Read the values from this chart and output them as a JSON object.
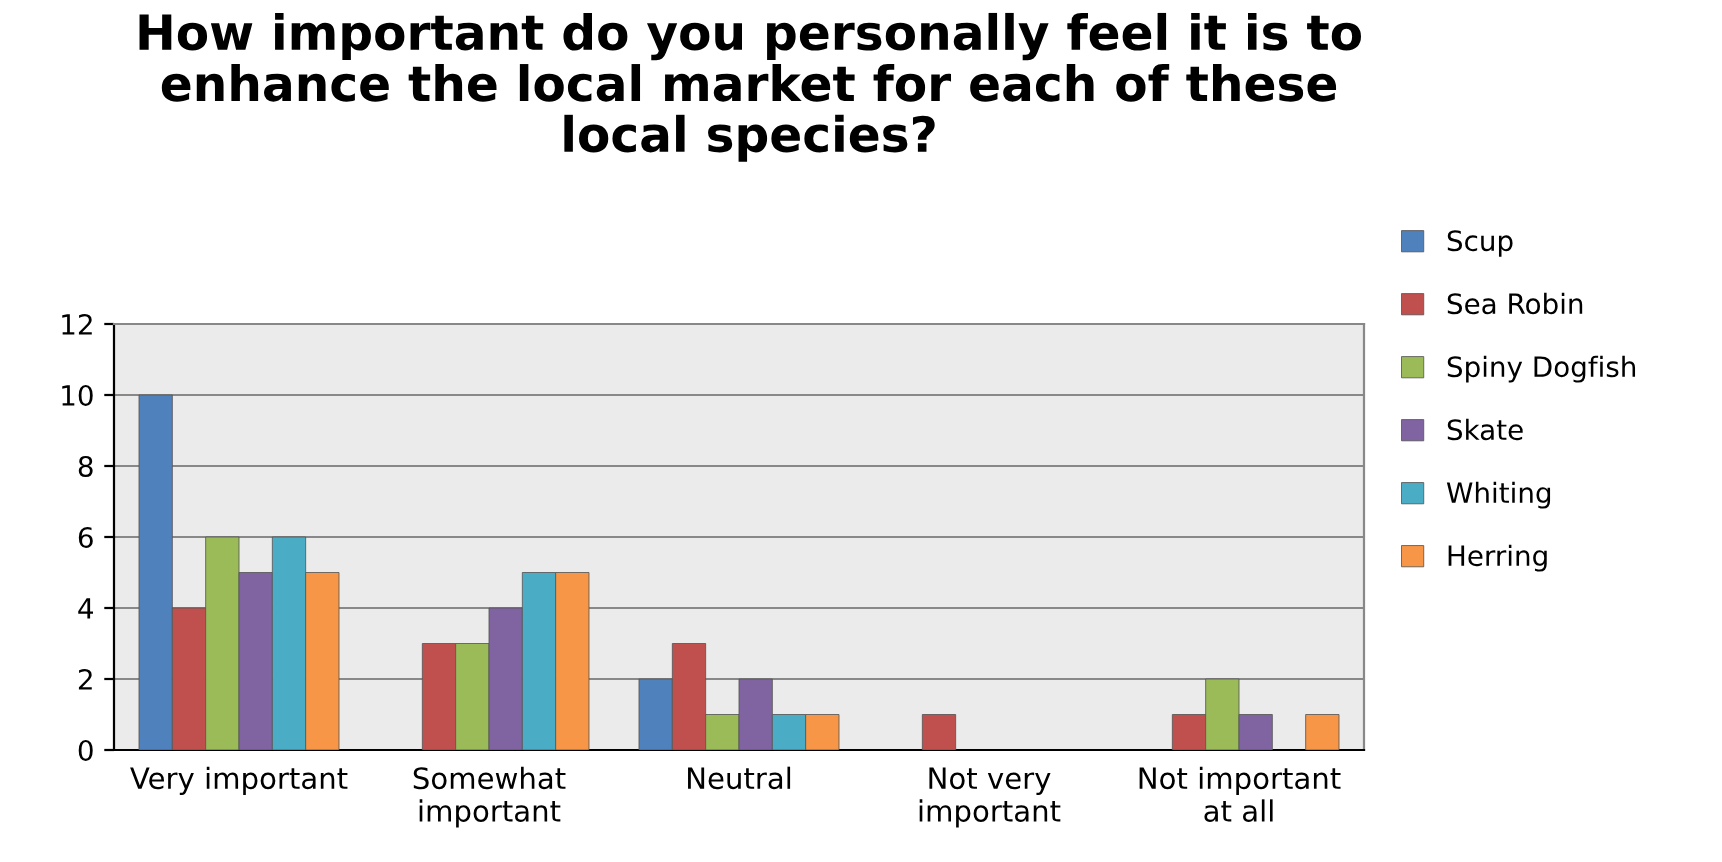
{
  "chart_data": {
    "type": "bar",
    "title": "How important do you personally feel it is to\nenhance the local market for each of these\nlocal species?",
    "categories": [
      "Very important",
      "Somewhat\nimportant",
      "Neutral",
      "Not very\nimportant",
      "Not important\nat all"
    ],
    "series": [
      {
        "name": "Scup",
        "color": "#4f81bd",
        "values": [
          10,
          null,
          2,
          null,
          null
        ]
      },
      {
        "name": "Sea Robin",
        "color": "#c0504d",
        "values": [
          4,
          3,
          3,
          1,
          1
        ]
      },
      {
        "name": "Spiny Dogfish",
        "color": "#9bbb59",
        "values": [
          6,
          3,
          1,
          null,
          2
        ]
      },
      {
        "name": "Skate",
        "color": "#8064a2",
        "values": [
          5,
          4,
          2,
          null,
          1
        ]
      },
      {
        "name": "Whiting",
        "color": "#4bacc6",
        "values": [
          6,
          5,
          1,
          null,
          null
        ]
      },
      {
        "name": "Herring",
        "color": "#f79646",
        "values": [
          5,
          5,
          1,
          null,
          1
        ]
      }
    ],
    "ylim": [
      0,
      12
    ],
    "yticks": [
      0,
      2,
      4,
      6,
      8,
      10,
      12
    ],
    "grid": "y",
    "legend": "right"
  }
}
